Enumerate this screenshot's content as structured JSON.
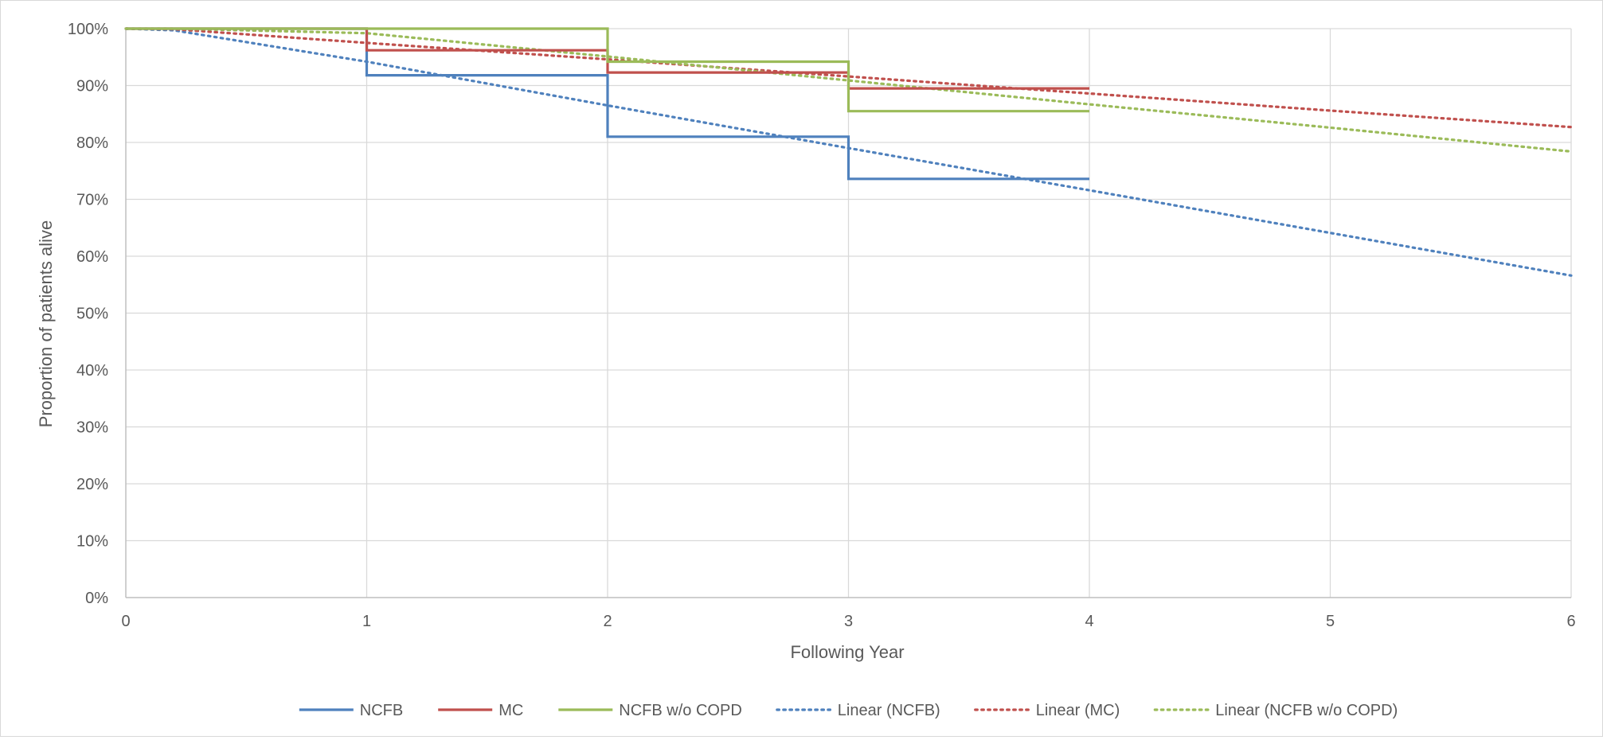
{
  "chart_data": {
    "type": "line",
    "title": "",
    "xlabel": "Following Year",
    "ylabel": "Proportion of patients alive",
    "xlim": [
      0,
      6
    ],
    "ylim": [
      0,
      100
    ],
    "x_ticks": [
      "0",
      "1",
      "2",
      "3",
      "4",
      "5",
      "6"
    ],
    "y_ticks": [
      "0%",
      "10%",
      "20%",
      "30%",
      "40%",
      "50%",
      "60%",
      "70%",
      "80%",
      "90%",
      "100%"
    ],
    "grid": true,
    "legend_position": "bottom",
    "step_series": [
      {
        "name": "NCFB",
        "color": "#4f81bd",
        "x": [
          0,
          1,
          2,
          3,
          4
        ],
        "values": [
          100,
          91.8,
          81.0,
          73.6,
          73.6
        ]
      },
      {
        "name": "MC",
        "color": "#c0504d",
        "x": [
          0,
          1,
          2,
          3,
          4
        ],
        "values": [
          100,
          96.2,
          92.3,
          89.5,
          89.5
        ]
      },
      {
        "name": "NCFB w/o COPD",
        "color": "#9bbb59",
        "x": [
          0,
          1,
          2,
          3,
          4
        ],
        "values": [
          100,
          100,
          94.2,
          85.5,
          85.5
        ]
      }
    ],
    "trend_series": [
      {
        "name": "Linear (NCFB)",
        "color": "#4f81bd",
        "x": [
          0,
          0.2,
          1,
          2,
          3,
          4,
          5,
          6
        ],
        "values": [
          100,
          99.7,
          94.2,
          86.5,
          79.0,
          71.6,
          64.1,
          56.6
        ]
      },
      {
        "name": "Linear (MC)",
        "color": "#c0504d",
        "x": [
          0,
          0.2,
          1,
          2,
          3,
          4,
          5,
          6
        ],
        "values": [
          100,
          99.9,
          97.5,
          94.6,
          91.6,
          88.6,
          85.6,
          82.7
        ]
      },
      {
        "name": "Linear (NCFB w/o COPD)",
        "color": "#9bbb59",
        "x": [
          0,
          0.2,
          1,
          2,
          3,
          4,
          5,
          6
        ],
        "values": [
          100,
          100,
          99.2,
          95.1,
          90.9,
          86.7,
          82.6,
          78.4
        ]
      }
    ]
  }
}
